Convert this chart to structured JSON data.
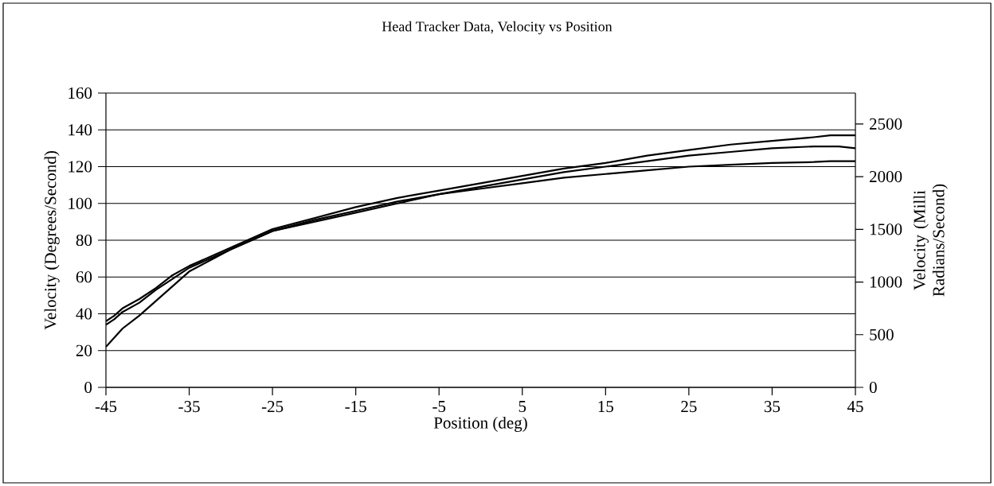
{
  "chart_data": {
    "type": "line",
    "title": "Head Tracker Data, Velocity vs Position",
    "xlabel": "Position (deg)",
    "ylabel": "Velocity (Degrees/Second)",
    "y2label": "Velocity (Milli Radians/Second)",
    "x": [
      -45,
      -44,
      -43,
      -41,
      -39,
      -37,
      -35,
      -30,
      -25,
      -20,
      -15,
      -10,
      -5,
      0,
      5,
      10,
      15,
      20,
      25,
      30,
      35,
      40,
      42,
      43,
      45
    ],
    "series": [
      {
        "color": "#000000",
        "values": [
          36,
          39,
          43,
          48,
          54,
          61,
          66,
          76,
          86,
          92,
          98,
          103,
          107,
          111,
          115,
          119,
          122,
          126,
          129,
          132,
          134,
          136,
          137,
          137,
          137
        ]
      },
      {
        "color": "#000000",
        "values": [
          34,
          37,
          41,
          46,
          53,
          59,
          65,
          75,
          85,
          91,
          96,
          101,
          105,
          109,
          113,
          117,
          120,
          123,
          126,
          128,
          130,
          131,
          131,
          131,
          130
        ]
      },
      {
        "color": "#000000",
        "values": [
          22,
          27,
          32,
          39,
          47,
          55,
          63,
          75,
          85,
          90,
          95,
          100,
          105,
          108,
          111,
          114,
          116,
          118,
          120,
          121,
          122,
          122.5,
          123,
          123,
          123
        ]
      }
    ],
    "xlim": [
      -45,
      45
    ],
    "xticks": [
      -45,
      -35,
      -25,
      -15,
      -5,
      5,
      15,
      25,
      35,
      45
    ],
    "ylim": [
      0,
      160
    ],
    "yticks": [
      0,
      20,
      40,
      60,
      80,
      100,
      120,
      140,
      160
    ],
    "y2lim": [
      0,
      2793
    ],
    "y2ticks": [
      0,
      500,
      1000,
      1500,
      2000,
      2500
    ],
    "grid": "y"
  }
}
